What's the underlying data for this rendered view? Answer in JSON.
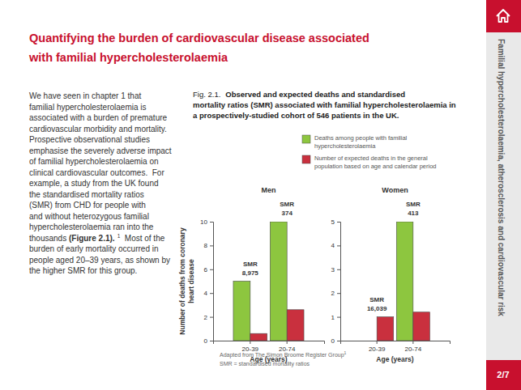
{
  "title": "Quantifying the burden of cardiovascular disease associated with familial hypercholesterolaemia",
  "body": {
    "lines": [
      [
        "We have seen in chapter 1 that"
      ],
      [
        "familial hypercholesterolaemia is"
      ],
      [
        "associated with a burden of premature"
      ],
      [
        "cardiovascular morbidity and mortality."
      ],
      [
        "Prospective observational studies"
      ],
      [
        "emphasise the severely adverse impact"
      ],
      [
        "of familial hypercholesterolaemia on"
      ],
      [
        "clinical cardiovascular outcomes.  For"
      ],
      [
        "example, a study from the UK found"
      ],
      [
        "the standardised mortality ratios"
      ],
      [
        "(SMR) from CHD for people with"
      ],
      [
        "and without heterozygous familial"
      ],
      [
        "hypercholesterolaemia ran into the"
      ],
      [
        "thousands ",
        {
          "bold": "(Figure 2.1)."
        },
        {
          "sup": "1"
        },
        "  Most of the"
      ],
      [
        "burden of early mortality occurred in"
      ],
      [
        "people aged 20–39 years, as shown by"
      ],
      [
        "the higher SMR for this group."
      ]
    ]
  },
  "figure": {
    "label": "Fig. 2.1.",
    "caption_lines": [
      "Observed and expected deaths and standardised",
      "mortality ratios (SMR) associated with familial hypercholesterolaemia in",
      "a prospectively-studied cohort of 546 patients in the UK."
    ],
    "source": "Adapted from The Simon Broome Register Group",
    "source_ref": "1",
    "note": "SMR = standardised mortality ratios"
  },
  "sidebar": "Familial hypercholesterolaemia, atherosclerosis and cardiovascular risk",
  "page_number": "2/7",
  "chart_data": [
    {
      "type": "bar",
      "title": "Men",
      "x_label": "Age (years)",
      "y_label": "Number of deaths from coronary heart disease",
      "categories": [
        "20-39",
        "20-74"
      ],
      "series": [
        {
          "name": "Deaths among people with familial hypercholesterolaemia",
          "color": "#8dc63f",
          "values": [
            5,
            10
          ]
        },
        {
          "name": "Number of expected deaths in the general population based on age and calendar period",
          "color": "#c9303e",
          "values": [
            0.6,
            2.6
          ]
        }
      ],
      "ylim": [
        0,
        10
      ],
      "yticks": [
        0,
        2,
        4,
        6,
        8,
        10
      ],
      "legend": "top",
      "smr": {
        "label": "SMR",
        "values": [
          8975,
          374
        ],
        "value_labels": [
          "8,975",
          "374"
        ]
      }
    },
    {
      "type": "bar",
      "title": "Women",
      "x_label": "Age (years)",
      "categories": [
        "20-39",
        "20-74"
      ],
      "series": [
        {
          "color": "#8dc63f",
          "values": [
            0,
            5
          ]
        },
        {
          "color": "#c9303e",
          "values": [
            1.0,
            1.2
          ]
        }
      ],
      "ylim": [
        0,
        5
      ],
      "yticks": [
        0,
        1,
        2,
        3,
        4,
        5
      ],
      "smr": {
        "label": "SMR",
        "values": [
          16039,
          413
        ],
        "value_labels": [
          "16,039",
          "413"
        ]
      }
    }
  ]
}
